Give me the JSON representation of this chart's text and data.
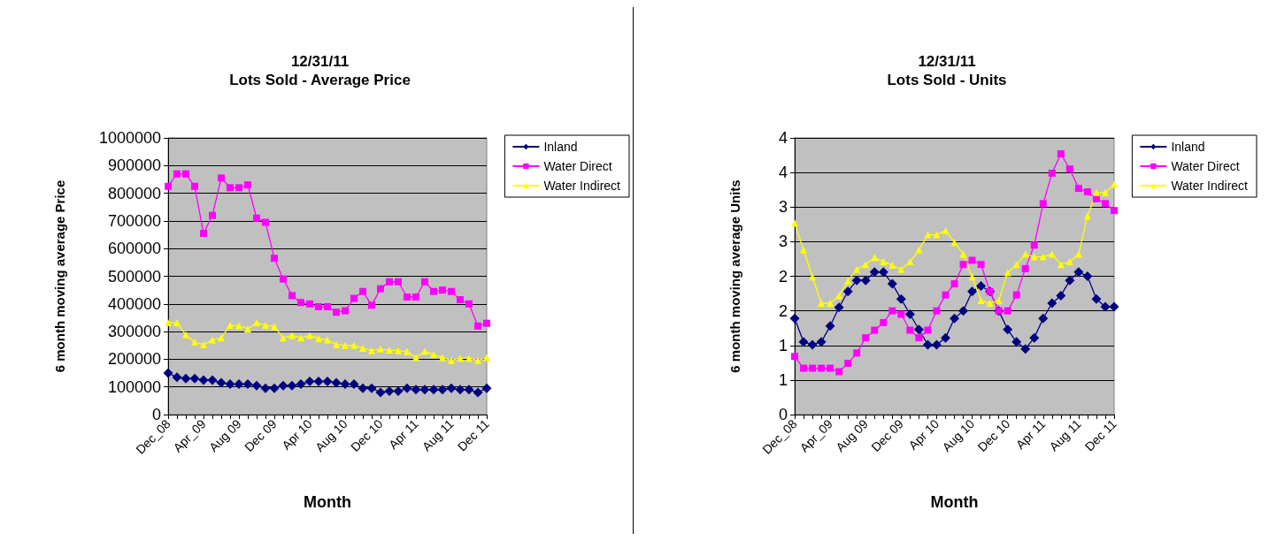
{
  "chart_data": [
    {
      "type": "line",
      "title": "12/31/11",
      "subtitle": "Lots Sold - Average Price",
      "xlabel": "Month",
      "ylabel": "6 month moving average Price",
      "categories": [
        "Dec_08",
        null,
        null,
        null,
        "Apr_09",
        null,
        null,
        null,
        "Aug 09",
        null,
        null,
        null,
        "Dec 09",
        null,
        null,
        null,
        "Apr 10",
        null,
        null,
        null,
        "Aug 10",
        null,
        null,
        null,
        "Dec 10",
        null,
        null,
        null,
        "Apr 11",
        null,
        null,
        null,
        "Aug 11",
        null,
        null,
        null,
        "Dec 11"
      ],
      "series": [
        {
          "name": "Inland",
          "color": "#000080",
          "marker": "diamond",
          "values": [
            150000,
            135000,
            130000,
            130000,
            125000,
            125000,
            115000,
            110000,
            110000,
            110000,
            105000,
            95000,
            95000,
            105000,
            105000,
            110000,
            120000,
            120000,
            120000,
            115000,
            110000,
            110000,
            95000,
            95000,
            80000,
            85000,
            85000,
            95000,
            90000,
            90000,
            90000,
            90000,
            95000,
            90000,
            90000,
            80000,
            95000
          ]
        },
        {
          "name": "Water Direct",
          "color": "#ff00ff",
          "marker": "square",
          "values": [
            825000,
            870000,
            870000,
            825000,
            655000,
            720000,
            855000,
            820000,
            820000,
            830000,
            710000,
            695000,
            565000,
            490000,
            430000,
            405000,
            400000,
            390000,
            390000,
            370000,
            375000,
            420000,
            445000,
            395000,
            455000,
            480000,
            480000,
            425000,
            425000,
            480000,
            445000,
            450000,
            445000,
            415000,
            400000,
            320000,
            330000
          ]
        },
        {
          "name": "Water Indirect",
          "color": "#ffff00",
          "marker": "triangle",
          "values": [
            332000,
            332000,
            288000,
            262000,
            253000,
            270000,
            277000,
            323000,
            321000,
            310000,
            332000,
            323000,
            318000,
            277000,
            286000,
            277000,
            286000,
            275000,
            270000,
            253000,
            250000,
            250000,
            240000,
            231000,
            237000,
            233000,
            231000,
            228000,
            206000,
            229000,
            217000,
            206000,
            196000,
            204000,
            204000,
            196000,
            206000
          ]
        }
      ],
      "ylim": [
        0,
        1000000
      ],
      "yticks": [
        0,
        100000,
        200000,
        300000,
        400000,
        500000,
        600000,
        700000,
        800000,
        900000,
        1000000
      ],
      "grid": "y",
      "legend": "right",
      "line_style": "solid"
    },
    {
      "type": "line",
      "title": "12/31/11",
      "subtitle": "Lots Sold - Units",
      "xlabel": "Month",
      "ylabel": "6 month moving average Units",
      "categories": [
        "Dec_08",
        null,
        null,
        null,
        "Apr_09",
        null,
        null,
        null,
        "Aug 09",
        null,
        null,
        null,
        "Dec 09",
        null,
        null,
        null,
        "Apr 10",
        null,
        null,
        null,
        "Aug 10",
        null,
        null,
        null,
        "Dec 10",
        null,
        null,
        null,
        "Apr 11",
        null,
        null,
        null,
        "Aug 11",
        null,
        null,
        null,
        "Dec 11"
      ],
      "series": [
        {
          "name": "Inland",
          "color": "#000080",
          "marker": "diamond",
          "values": [
            1.39,
            1.05,
            1.01,
            1.05,
            1.28,
            1.55,
            1.78,
            1.94,
            1.94,
            2.06,
            2.06,
            1.89,
            1.67,
            1.45,
            1.23,
            1.01,
            1.01,
            1.11,
            1.39,
            1.5,
            1.78,
            1.86,
            1.78,
            1.5,
            1.23,
            1.05,
            0.95,
            1.11,
            1.39,
            1.61,
            1.72,
            1.94,
            2.06,
            2.0,
            1.67,
            1.56,
            1.56
          ]
        },
        {
          "name": "Water Direct",
          "color": "#ff00ff",
          "marker": "square",
          "values": [
            0.84,
            0.67,
            0.67,
            0.67,
            0.67,
            0.62,
            0.74,
            0.89,
            1.11,
            1.22,
            1.33,
            1.5,
            1.45,
            1.22,
            1.11,
            1.22,
            1.5,
            1.73,
            1.89,
            2.17,
            2.23,
            2.17,
            1.78,
            1.5,
            1.5,
            1.73,
            2.11,
            2.45,
            3.05,
            3.49,
            3.77,
            3.55,
            3.27,
            3.22,
            3.12,
            3.05,
            2.95
          ]
        },
        {
          "name": "Water Indirect",
          "color": "#ffff00",
          "marker": "triangle",
          "values": [
            2.77,
            2.38,
            1.99,
            1.61,
            1.61,
            1.72,
            1.93,
            2.1,
            2.17,
            2.27,
            2.21,
            2.16,
            2.1,
            2.21,
            2.38,
            2.6,
            2.6,
            2.66,
            2.49,
            2.32,
            1.99,
            1.65,
            1.61,
            1.65,
            2.05,
            2.17,
            2.32,
            2.28,
            2.28,
            2.32,
            2.17,
            2.21,
            2.32,
            2.87,
            3.21,
            3.21,
            3.33
          ]
        }
      ],
      "ylim": [
        0,
        4
      ],
      "yticks": [
        0,
        {
          "value": 0.5,
          "label": "1"
        },
        1,
        {
          "value": 1.5,
          "label": "2"
        },
        2,
        {
          "value": 2.5,
          "label": "3"
        },
        3,
        {
          "value": 3.5,
          "label": "4"
        },
        4
      ],
      "grid": "y",
      "legend": "right",
      "line_style": "solid"
    }
  ]
}
